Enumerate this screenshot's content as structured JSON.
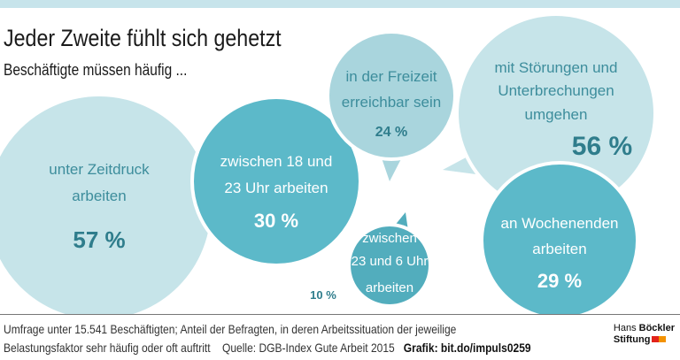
{
  "header": {
    "title": "Jeder Zweite fühlt sich gehetzt",
    "subtitle": "Beschäftigte müssen häufig ..."
  },
  "chart_data": {
    "type": "bubble",
    "title": "Jeder Zweite fühlt sich gehetzt",
    "subtitle": "Beschäftigte müssen häufig ...",
    "unit": "%",
    "items": [
      {
        "label": [
          "unter Zeitdruck",
          "arbeiten"
        ],
        "value": 57,
        "value_label": "57 %",
        "color": "#c6e4e9"
      },
      {
        "label": [
          "zwischen 18 und",
          "23 Uhr arbeiten"
        ],
        "value": 30,
        "value_label": "30 %",
        "color": "#5cb9c9"
      },
      {
        "label": [
          "in der Freizeit",
          "erreichbar sein"
        ],
        "value": 24,
        "value_label": "24 %",
        "color": "#a9d5dd"
      },
      {
        "label": [
          "mit Störungen und",
          "Unterbrechungen",
          "umgehen"
        ],
        "value": 56,
        "value_label": "56 %",
        "color": "#c6e4e9"
      },
      {
        "label": [
          "an Wochenenden",
          "arbeiten"
        ],
        "value": 29,
        "value_label": "29 %",
        "color": "#5cb9c9"
      },
      {
        "label": [
          "zwischen",
          "23 und 6 Uhr",
          "arbeiten"
        ],
        "value": 10,
        "value_label": "10 %",
        "color": "#52adbd"
      }
    ]
  },
  "footer": {
    "line1": "Umfrage unter 15.541 Beschäftigten; Anteil der Befragten, in deren Arbeitssituation der jeweilige",
    "line2": "Belastungsfaktor sehr häufig oder oft auftritt",
    "source": "Quelle: DGB-Index Gute Arbeit 2015",
    "grafik": "Grafik: bit.do/impuls0259",
    "logo_line1_a": "Hans",
    "logo_line1_b": "Böckler",
    "logo_line2": "Stiftung"
  },
  "colors": {
    "text_teal": "#3d8d9c",
    "value_teal": "#2f7d8c",
    "logo_red": "#e2231a",
    "logo_orange": "#f39200"
  }
}
